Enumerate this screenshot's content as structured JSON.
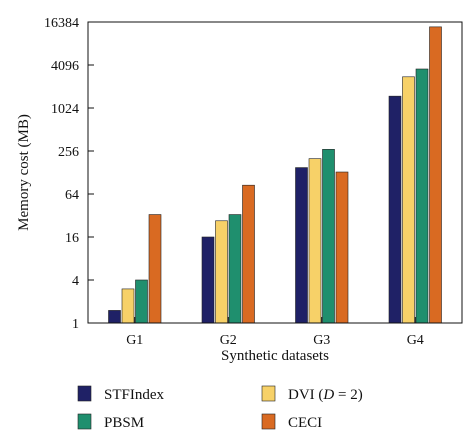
{
  "chart_data": {
    "type": "bar",
    "categories": [
      "G1",
      "G2",
      "G3",
      "G4"
    ],
    "yscale": "log2",
    "ylim": [
      1,
      16384
    ],
    "yticks": [
      "1",
      "4",
      "16",
      "64",
      "256",
      "1024",
      "4096",
      "16384"
    ],
    "xlabel": "Synthetic datasets",
    "ylabel": "Memory cost (MB)",
    "legend": {
      "placement": "bottom",
      "entries": [
        {
          "label": "STFIndex",
          "series": 0
        },
        {
          "label_parts": [
            "DVI (",
            "D",
            " = 2)"
          ],
          "series": 1
        },
        {
          "label": "PBSM",
          "series": 2
        },
        {
          "label": "CECI",
          "series": 3
        }
      ]
    },
    "series": [
      {
        "name": "STFIndex",
        "color": "#1f2166",
        "values": [
          1.5,
          16,
          150,
          1500
        ]
      },
      {
        "name": "DVI (D = 2)",
        "color": "#f7d168",
        "values": [
          3,
          27,
          200,
          2800
        ]
      },
      {
        "name": "PBSM",
        "color": "#1f8f6e",
        "values": [
          4,
          33,
          270,
          3600
        ]
      },
      {
        "name": "CECI",
        "color": "#d96a22",
        "values": [
          33,
          85,
          130,
          14000
        ]
      }
    ]
  }
}
